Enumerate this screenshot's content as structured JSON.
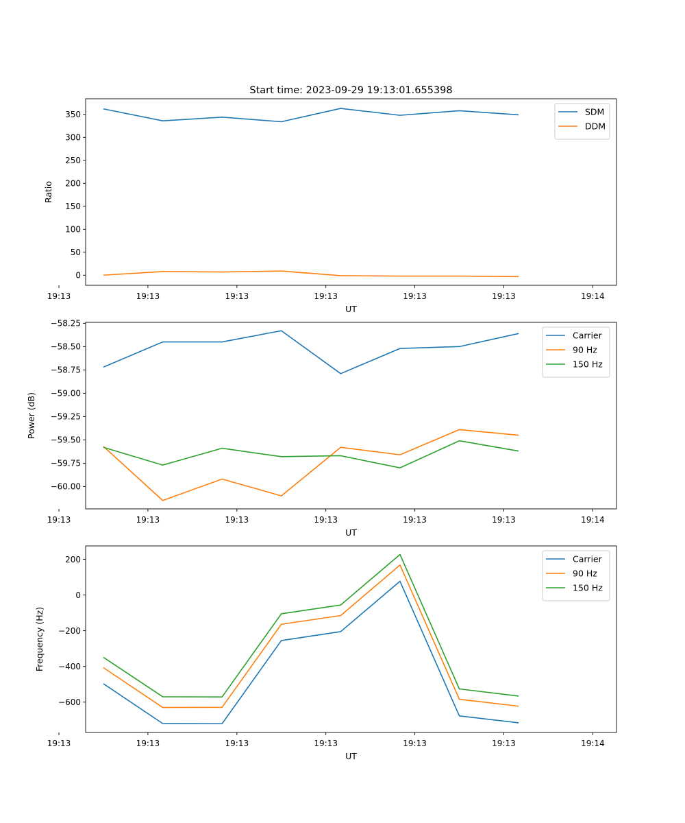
{
  "chart_data": [
    {
      "type": "line",
      "title": "Start time: 2023-09-29 19:13:01.655398",
      "xlabel": "UT",
      "ylabel": "Ratio",
      "x_tick_labels": [
        "19:13",
        "19:13",
        "19:13",
        "19:13",
        "19:13",
        "19:13",
        "19:14"
      ],
      "y_ticks": [
        0,
        50,
        100,
        150,
        200,
        250,
        300,
        350
      ],
      "y_tick_labels": [
        "0",
        "50",
        "100",
        "150",
        "200",
        "250",
        "300",
        "350"
      ],
      "xlim": [
        -0.3,
        8.65
      ],
      "ylim": [
        -22,
        384
      ],
      "legend_position": "top-right",
      "series": [
        {
          "name": "SDM",
          "color": "#1f77b4",
          "values": [
            362,
            336,
            344,
            334,
            363,
            348,
            358,
            349
          ]
        },
        {
          "name": "DDM",
          "color": "#ff7f0e",
          "values": [
            0,
            8,
            7,
            9,
            -1,
            -2,
            -2,
            -3
          ]
        }
      ]
    },
    {
      "type": "line",
      "title": "",
      "xlabel": "UT",
      "ylabel": "Power (dB)",
      "x_tick_labels": [
        "19:13",
        "19:13",
        "19:13",
        "19:13",
        "19:13",
        "19:13",
        "19:14"
      ],
      "y_ticks": [
        -60.0,
        -59.75,
        -59.5,
        -59.25,
        -59.0,
        -58.75,
        -58.5,
        -58.25
      ],
      "y_tick_labels": [
        "−60.00",
        "−59.75",
        "−59.50",
        "−59.25",
        "−59.00",
        "−58.75",
        "−58.50",
        "−58.25"
      ],
      "xlim": [
        -0.3,
        8.65
      ],
      "ylim": [
        -60.24,
        -58.24
      ],
      "legend_position": "top-right",
      "series": [
        {
          "name": "Carrier",
          "color": "#1f77b4",
          "values": [
            -58.72,
            -58.45,
            -58.45,
            -58.33,
            -58.79,
            -58.52,
            -58.5,
            -58.36
          ]
        },
        {
          "name": "90 Hz",
          "color": "#ff7f0e",
          "values": [
            -59.57,
            -60.15,
            -59.92,
            -60.1,
            -59.58,
            -59.66,
            -59.39,
            -59.45
          ]
        },
        {
          "name": "150 Hz",
          "color": "#2ca02c",
          "values": [
            -59.58,
            -59.77,
            -59.59,
            -59.68,
            -59.67,
            -59.8,
            -59.51,
            -59.62
          ]
        }
      ]
    },
    {
      "type": "line",
      "title": "",
      "xlabel": "UT",
      "ylabel": "Frequency (Hz)",
      "x_tick_labels": [
        "19:13",
        "19:13",
        "19:13",
        "19:13",
        "19:13",
        "19:13",
        "19:14"
      ],
      "y_ticks": [
        -600,
        -400,
        -200,
        0,
        200
      ],
      "y_tick_labels": [
        "−600",
        "−400",
        "−200",
        "0",
        "200"
      ],
      "xlim": [
        -0.3,
        8.65
      ],
      "ylim": [
        -770,
        275
      ],
      "legend_position": "top-right",
      "series": [
        {
          "name": "Carrier",
          "color": "#1f77b4",
          "values": [
            -497,
            -720,
            -721,
            -255,
            -205,
            77,
            -677,
            -716
          ]
        },
        {
          "name": "90 Hz",
          "color": "#ff7f0e",
          "values": [
            -407,
            -630,
            -629,
            -164,
            -115,
            168,
            -584,
            -623
          ]
        },
        {
          "name": "150 Hz",
          "color": "#2ca02c",
          "values": [
            -349,
            -570,
            -571,
            -105,
            -56,
            227,
            -526,
            -566
          ]
        }
      ]
    }
  ]
}
